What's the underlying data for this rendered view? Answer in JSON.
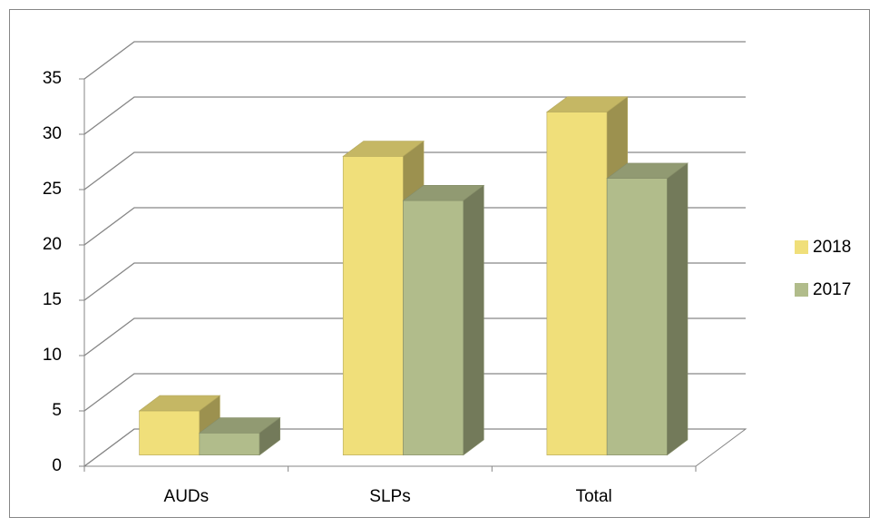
{
  "chart_data": {
    "type": "bar3d",
    "categories": [
      "AUDs",
      "SLPs",
      "Total"
    ],
    "series": [
      {
        "name": "2018",
        "color": "#f0df7a",
        "values": [
          4,
          27,
          31
        ]
      },
      {
        "name": "2017",
        "color": "#b1bc8b",
        "values": [
          2,
          23,
          25
        ]
      }
    ],
    "ylim": [
      0,
      35
    ],
    "yticks": [
      0,
      5,
      10,
      15,
      20,
      25,
      30,
      35
    ],
    "grid": true,
    "legend": "right"
  }
}
